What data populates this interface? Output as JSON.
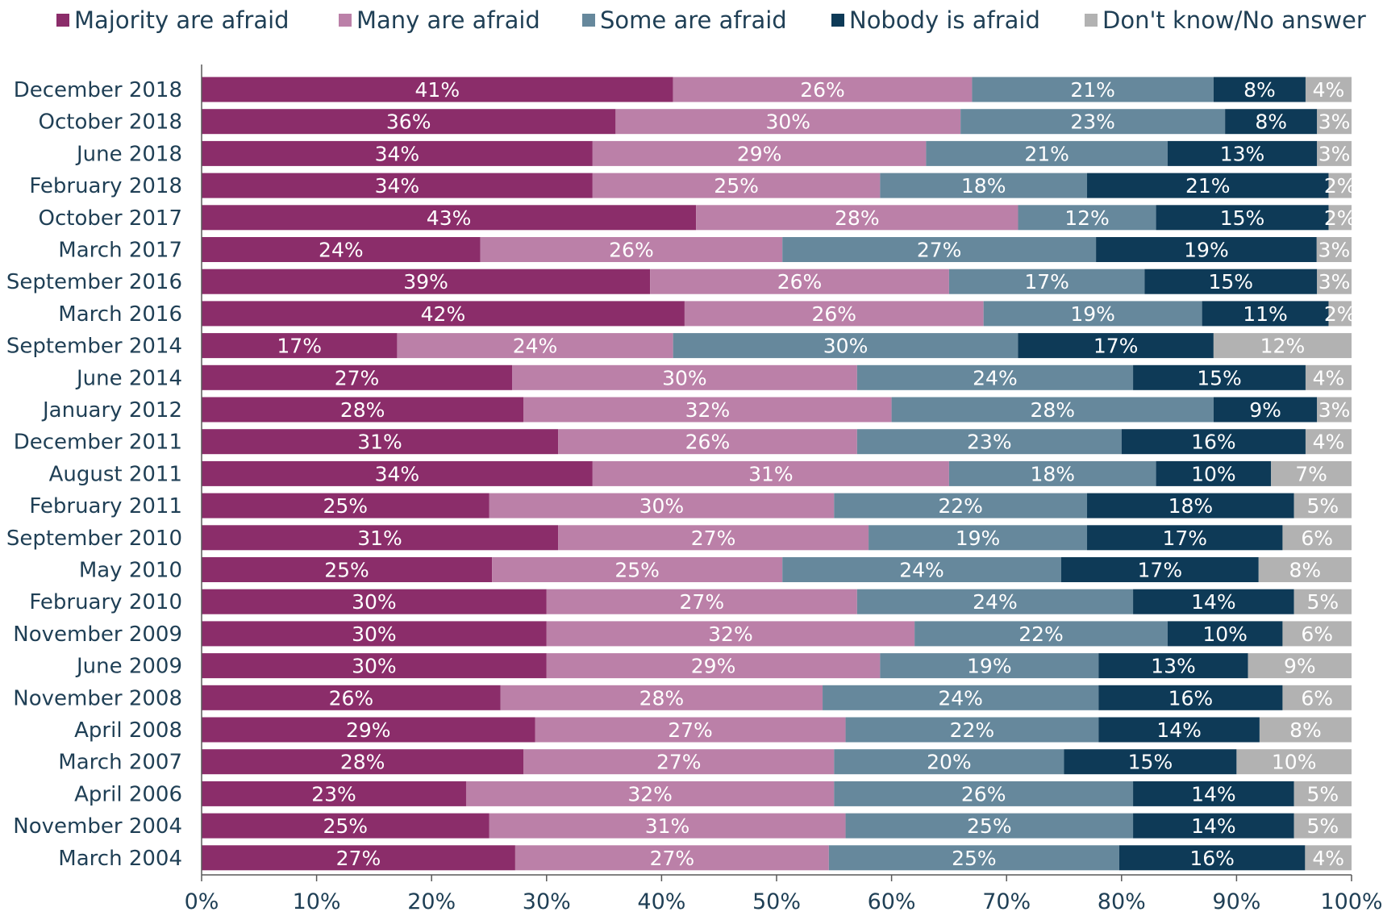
{
  "chart_data": {
    "type": "bar",
    "orientation": "horizontal",
    "stacked": true,
    "title": "",
    "xlabel": "",
    "ylabel": "",
    "xlim": [
      0,
      100
    ],
    "x_ticks": [
      "0%",
      "10%",
      "20%",
      "30%",
      "40%",
      "50%",
      "60%",
      "70%",
      "80%",
      "90%",
      "100%"
    ],
    "legend_position": "top",
    "grid": false,
    "categories": [
      "December 2018",
      "October 2018",
      "June 2018",
      "February 2018",
      "October 2017",
      "March 2017",
      "September 2016",
      "March 2016",
      "September 2014",
      "June 2014",
      "January 2012",
      "December 2011",
      "August 2011",
      "February 2011",
      "September 2010",
      "May 2010",
      "February 2010",
      "November 2009",
      "June 2009",
      "November 2008",
      "April 2008",
      "March 2007",
      "April 2006",
      "November 2004",
      "March 2004"
    ],
    "series": [
      {
        "name": "Majority are afraid",
        "color": "#8b2d6a",
        "values": [
          41,
          36,
          34,
          34,
          43,
          24,
          39,
          42,
          17,
          27,
          28,
          31,
          34,
          25,
          31,
          25,
          30,
          30,
          30,
          26,
          29,
          28,
          23,
          25,
          27
        ]
      },
      {
        "name": "Many are afraid",
        "color": "#bb80a8",
        "values": [
          26,
          30,
          29,
          25,
          28,
          26,
          26,
          26,
          24,
          30,
          32,
          26,
          31,
          30,
          27,
          25,
          27,
          32,
          29,
          28,
          27,
          27,
          32,
          31,
          27
        ]
      },
      {
        "name": "Some are afraid",
        "color": "#66889c",
        "values": [
          21,
          23,
          21,
          18,
          12,
          27,
          17,
          19,
          30,
          24,
          28,
          23,
          18,
          22,
          19,
          24,
          24,
          22,
          19,
          24,
          22,
          20,
          26,
          25,
          25
        ]
      },
      {
        "name": "Nobody is afraid",
        "color": "#0e3a57",
        "values": [
          8,
          8,
          13,
          21,
          15,
          19,
          15,
          11,
          17,
          15,
          9,
          16,
          10,
          18,
          17,
          17,
          14,
          10,
          13,
          16,
          14,
          15,
          14,
          14,
          16
        ]
      },
      {
        "name": "Don't know/No answer",
        "color": "#b2b2b2",
        "values": [
          4,
          3,
          3,
          2,
          2,
          3,
          3,
          2,
          12,
          4,
          3,
          4,
          7,
          5,
          6,
          8,
          5,
          6,
          9,
          6,
          8,
          10,
          5,
          5,
          4
        ]
      }
    ]
  }
}
